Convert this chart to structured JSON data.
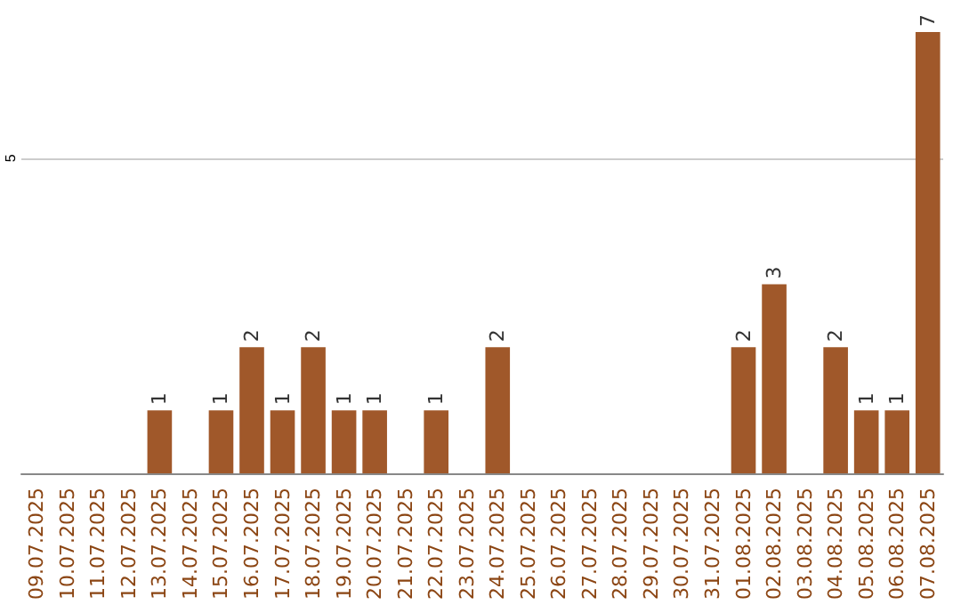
{
  "chart_data": {
    "type": "bar",
    "categories": [
      "09.07.2025",
      "10.07.2025",
      "11.07.2025",
      "12.07.2025",
      "13.07.2025",
      "14.07.2025",
      "15.07.2025",
      "16.07.2025",
      "17.07.2025",
      "18.07.2025",
      "19.07.2025",
      "20.07.2025",
      "21.07.2025",
      "22.07.2025",
      "23.07.2025",
      "24.07.2025",
      "25.07.2025",
      "26.07.2025",
      "27.07.2025",
      "28.07.2025",
      "29.07.2025",
      "30.07.2025",
      "31.07.2025",
      "01.08.2025",
      "02.08.2025",
      "03.08.2025",
      "04.08.2025",
      "05.08.2025",
      "06.08.2025",
      "07.08.2025"
    ],
    "values": [
      0,
      0,
      0,
      0,
      1,
      0,
      1,
      2,
      1,
      2,
      1,
      1,
      0,
      1,
      0,
      2,
      0,
      0,
      0,
      0,
      0,
      0,
      0,
      2,
      3,
      0,
      2,
      1,
      1,
      7
    ],
    "value_labels": [
      null,
      null,
      null,
      null,
      "1",
      null,
      "1",
      "2",
      "1",
      "2",
      "1",
      "1",
      null,
      "1",
      null,
      "2",
      null,
      null,
      null,
      null,
      null,
      null,
      null,
      "2",
      "3",
      null,
      "2",
      "1",
      "1",
      "7"
    ],
    "color": "#a0582a",
    "ylim": [
      0,
      7
    ],
    "yticks": [
      5
    ],
    "grid": "y"
  }
}
